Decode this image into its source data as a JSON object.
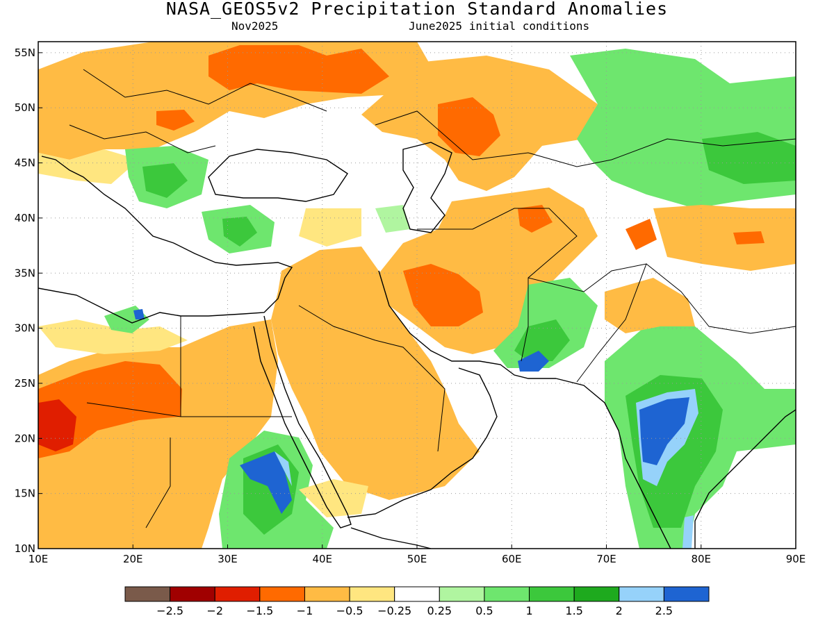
{
  "title": "NASA_GEOS5v2 Precipitation Standard Anomalies",
  "subtitle_left": "Nov2025",
  "subtitle_right": "June2025 initial conditions",
  "map": {
    "lon_range": [
      10,
      90
    ],
    "lat_range": [
      10,
      56
    ],
    "lon_ticks": [
      "10E",
      "20E",
      "30E",
      "40E",
      "50E",
      "60E",
      "70E",
      "80E",
      "90E"
    ],
    "lat_ticks": [
      "10N",
      "15N",
      "20N",
      "25N",
      "30N",
      "35N",
      "40N",
      "45N",
      "50N",
      "55N"
    ],
    "grid": "dotted"
  },
  "colorbar": {
    "colors": [
      "#7a5a4a",
      "#a00000",
      "#e01e00",
      "#ff6a00",
      "#ffbb44",
      "#ffe680",
      "#ffffff",
      "#b0f5a0",
      "#6ee66e",
      "#3cc83c",
      "#1eaa1e",
      "#96d2fa",
      "#1e64d2"
    ],
    "labels": [
      "−2.5",
      "−2",
      "−1.5",
      "−1",
      "−0.5",
      "−0.25",
      "0.25",
      "0.5",
      "1",
      "1.5",
      "2",
      "2.5"
    ]
  }
}
